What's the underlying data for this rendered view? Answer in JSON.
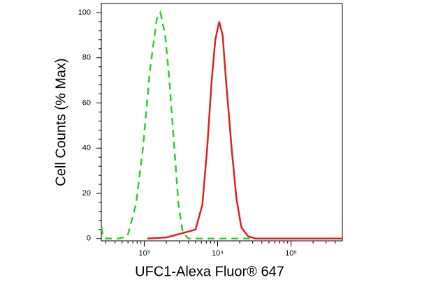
{
  "chart_data": {
    "type": "line",
    "x_label": "UFC1-Alexa Fluor® 647",
    "y_label": "Cell Counts (% Max)",
    "xscale": "log",
    "xlim": [
      260,
      500000
    ],
    "ylim": [
      -1,
      104
    ],
    "xticks": [
      {
        "value": 1000,
        "label": "10³"
      },
      {
        "value": 10000,
        "label": "10⁴"
      },
      {
        "value": 100000,
        "label": "10⁵"
      }
    ],
    "yticks": [
      0,
      20,
      40,
      60,
      80,
      100
    ],
    "series": [
      {
        "color": "#33cc33",
        "linestyle": "dashed",
        "x": [
          262,
          275,
          300,
          450,
          590,
          770,
          960,
          1200,
          1480,
          1660,
          1930,
          2200,
          2570,
          2930,
          3340,
          3980,
          20000,
          500000
        ],
        "values": [
          5,
          1,
          0,
          0,
          1,
          15,
          40,
          75,
          97,
          100,
          90,
          70,
          40,
          15,
          3,
          0,
          0,
          0
        ]
      },
      {
        "color": "#dd2222",
        "linestyle": "solid",
        "x": [
          1100,
          2000,
          3000,
          5000,
          6200,
          7200,
          8300,
          9300,
          10500,
          11700,
          13000,
          15500,
          18000,
          21000,
          26000,
          33000,
          500000
        ],
        "values": [
          0,
          0.5,
          2,
          4,
          15,
          40,
          70,
          88,
          96,
          90,
          70,
          40,
          18,
          5,
          1,
          0,
          0
        ]
      }
    ]
  }
}
